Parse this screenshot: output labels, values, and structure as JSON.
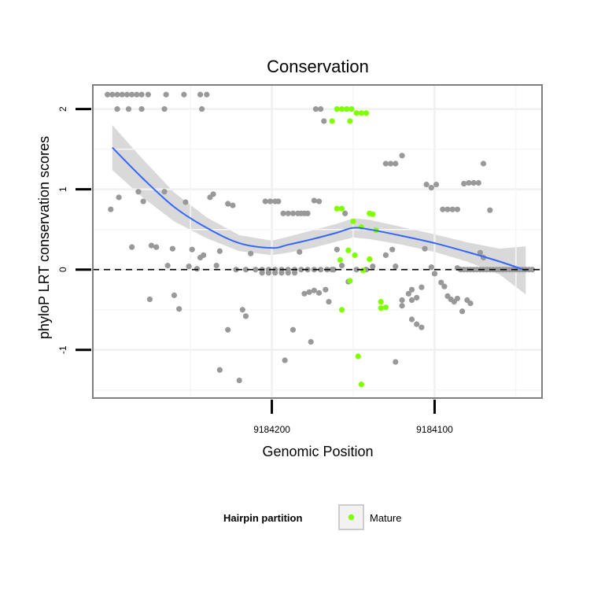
{
  "chart_data": {
    "type": "scatter",
    "title": "Conservation",
    "xlabel": "Genomic Position",
    "ylabel": "phyloP LRT conservation scores",
    "x_reversed": true,
    "xlim": [
      9184310,
      9184034
    ],
    "ylim": [
      -1.6,
      2.3
    ],
    "x_ticks": [
      9184200,
      9184100
    ],
    "x_tick_labels": [
      "9184200",
      "9184100"
    ],
    "y_ticks": [
      -1,
      0,
      1,
      2
    ],
    "y_tick_labels": [
      "-1",
      "0",
      "1",
      "2"
    ],
    "grid": true,
    "reference_line": {
      "y": 0,
      "style": "dashed"
    },
    "legend": {
      "title": "Hairpin partition",
      "placement": "bottom",
      "entries": [
        {
          "label": "Mature",
          "color": "#80ff00"
        }
      ]
    },
    "colors": {
      "other": "#999999",
      "mature": "#80ff00",
      "smooth": "#3366ff",
      "band": "#cccccc"
    },
    "series": [
      {
        "group": "other",
        "points": [
          [
            9184301,
            2.18
          ],
          [
            9184298,
            2.18
          ],
          [
            9184295,
            2.18
          ],
          [
            9184292,
            2.18
          ],
          [
            9184289,
            2.18
          ],
          [
            9184286,
            2.18
          ],
          [
            9184283,
            2.18
          ],
          [
            9184280,
            2.18
          ],
          [
            9184276,
            2.18
          ],
          [
            9184265,
            2.18
          ],
          [
            9184254,
            2.18
          ],
          [
            9184244,
            2.18
          ],
          [
            9184240,
            2.18
          ],
          [
            9184295,
            2.0
          ],
          [
            9184288,
            2.0
          ],
          [
            9184280,
            2.0
          ],
          [
            9184266,
            2.0
          ],
          [
            9184243,
            2.0
          ],
          [
            9184204,
            0.85
          ],
          [
            9184201,
            0.85
          ],
          [
            9184198,
            0.85
          ],
          [
            9184196,
            0.85
          ],
          [
            9184193,
            0.7
          ],
          [
            9184190,
            0.7
          ],
          [
            9184187,
            0.7
          ],
          [
            9184184,
            0.7
          ],
          [
            9184182,
            0.7
          ],
          [
            9184180,
            0.7
          ],
          [
            9184178,
            0.7
          ],
          [
            9184174,
            0.86
          ],
          [
            9184171,
            0.85
          ],
          [
            9184173,
            2.0
          ],
          [
            9184170,
            2.0
          ],
          [
            9184168,
            1.85
          ],
          [
            9184130,
            1.32
          ],
          [
            9184127,
            1.32
          ],
          [
            9184124,
            1.32
          ],
          [
            9184120,
            1.42
          ],
          [
            9184105,
            1.06
          ],
          [
            9184102,
            1.02
          ],
          [
            9184099,
            1.06
          ],
          [
            9184095,
            0.75
          ],
          [
            9184092,
            0.75
          ],
          [
            9184089,
            0.75
          ],
          [
            9184086,
            0.75
          ],
          [
            9184082,
            1.07
          ],
          [
            9184079,
            1.08
          ],
          [
            9184076,
            1.08
          ],
          [
            9184073,
            1.08
          ],
          [
            9184070,
            1.32
          ],
          [
            9184066,
            0.74
          ],
          [
            9184299,
            0.75
          ],
          [
            9184294,
            0.9
          ],
          [
            9184286,
            0.28
          ],
          [
            9184282,
            0.97
          ],
          [
            9184279,
            0.85
          ],
          [
            9184275,
            -0.37
          ],
          [
            9184274,
            0.3
          ],
          [
            9184271,
            0.28
          ],
          [
            9184266,
            0.97
          ],
          [
            9184264,
            0.05
          ],
          [
            9184261,
            0.26
          ],
          [
            9184260,
            -0.32
          ],
          [
            9184257,
            -0.49
          ],
          [
            9184253,
            0.84
          ],
          [
            9184251,
            0.04
          ],
          [
            9184249,
            0.25
          ],
          [
            9184246,
            0.01
          ],
          [
            9184244,
            0.15
          ],
          [
            9184242,
            0.18
          ],
          [
            9184238,
            0.9
          ],
          [
            9184236,
            0.94
          ],
          [
            9184234,
            0.05
          ],
          [
            9184232,
            0.23
          ],
          [
            9184232,
            -1.25
          ],
          [
            9184227,
            -0.75
          ],
          [
            9184227,
            0.82
          ],
          [
            9184224,
            0.8
          ],
          [
            9184220,
            -1.38
          ],
          [
            9184218,
            -0.5
          ],
          [
            9184216,
            -0.58
          ],
          [
            9184213,
            0.2
          ],
          [
            9184222,
            0.0
          ],
          [
            9184216,
            0.0
          ],
          [
            9184210,
            0.0
          ],
          [
            9184206,
            0.0
          ],
          [
            9184202,
            0.0
          ],
          [
            9184198,
            0.0
          ],
          [
            9184194,
            0.0
          ],
          [
            9184190,
            0.0
          ],
          [
            9184186,
            0.0
          ],
          [
            9184182,
            0.0
          ],
          [
            9184178,
            0.0
          ],
          [
            9184174,
            0.0
          ],
          [
            9184170,
            0.0
          ],
          [
            9184166,
            0.0
          ],
          [
            9184162,
            0.0
          ],
          [
            9184206,
            -0.04
          ],
          [
            9184202,
            -0.04
          ],
          [
            9184198,
            -0.04
          ],
          [
            9184194,
            -0.04
          ],
          [
            9184190,
            -0.04
          ],
          [
            9184186,
            -0.04
          ],
          [
            9184192,
            -1.13
          ],
          [
            9184187,
            -0.75
          ],
          [
            9184176,
            -0.9
          ],
          [
            9184183,
            0.22
          ],
          [
            9184180,
            -0.3
          ],
          [
            9184177,
            -0.28
          ],
          [
            9184174,
            -0.26
          ],
          [
            9184171,
            -0.29
          ],
          [
            9184167,
            -0.25
          ],
          [
            9184165,
            -0.4
          ],
          [
            9184163,
            0.0
          ],
          [
            9184160,
            0.25
          ],
          [
            9184157,
            0.05
          ],
          [
            9184155,
            0.7
          ],
          [
            9184153,
            -0.15
          ],
          [
            9184148,
            0.0
          ],
          [
            9184142,
            0.0
          ],
          [
            9184138,
            0.04
          ],
          [
            9184130,
            0.18
          ],
          [
            9184126,
            0.25
          ],
          [
            9184124,
            0.04
          ],
          [
            9184120,
            -0.38
          ],
          [
            9184116,
            -0.3
          ],
          [
            9184114,
            -0.38
          ],
          [
            9184111,
            -0.35
          ],
          [
            9184108,
            -0.22
          ],
          [
            9184124,
            -1.15
          ],
          [
            9184120,
            -0.45
          ],
          [
            9184114,
            -0.62
          ],
          [
            9184111,
            -0.68
          ],
          [
            9184108,
            -0.72
          ],
          [
            9184114,
            -0.25
          ],
          [
            9184106,
            0.26
          ],
          [
            9184102,
            0.03
          ],
          [
            9184100,
            -0.05
          ],
          [
            9184096,
            -0.16
          ],
          [
            9184094,
            -0.21
          ],
          [
            9184092,
            -0.33
          ],
          [
            9184090,
            -0.37
          ],
          [
            9184088,
            -0.4
          ],
          [
            9184086,
            0.02
          ],
          [
            9184084,
            0.0
          ],
          [
            9184082,
            0.0
          ],
          [
            9184080,
            0.0
          ],
          [
            9184078,
            0.0
          ],
          [
            9184076,
            0.0
          ],
          [
            9184074,
            0.0
          ],
          [
            9184072,
            0.0
          ],
          [
            9184070,
            0.0
          ],
          [
            9184068,
            0.0
          ],
          [
            9184066,
            0.0
          ],
          [
            9184064,
            0.0
          ],
          [
            9184062,
            0.0
          ],
          [
            9184060,
            0.0
          ],
          [
            9184058,
            0.0
          ],
          [
            9184056,
            0.0
          ],
          [
            9184054,
            0.0
          ],
          [
            9184052,
            0.0
          ],
          [
            9184050,
            0.0
          ],
          [
            9184048,
            0.0
          ],
          [
            9184046,
            0.0
          ],
          [
            9184044,
            0.0
          ],
          [
            9184042,
            0.0
          ],
          [
            9184040,
            0.0
          ],
          [
            9184072,
            0.21
          ],
          [
            9184070,
            0.15
          ],
          [
            9184086,
            -0.36
          ],
          [
            9184083,
            -0.52
          ],
          [
            9184080,
            -0.38
          ],
          [
            9184078,
            -0.42
          ]
        ]
      },
      {
        "group": "mature",
        "name": "Mature",
        "points": [
          [
            9184160,
            2.0
          ],
          [
            9184157,
            2.0
          ],
          [
            9184154,
            2.0
          ],
          [
            9184151,
            2.0
          ],
          [
            9184148,
            1.95
          ],
          [
            9184145,
            1.95
          ],
          [
            9184142,
            1.95
          ],
          [
            9184163,
            1.85
          ],
          [
            9184152,
            1.85
          ],
          [
            9184160,
            0.76
          ],
          [
            9184157,
            0.76
          ],
          [
            9184140,
            0.7
          ],
          [
            9184138,
            0.69
          ],
          [
            9184150,
            0.6
          ],
          [
            9184145,
            0.53
          ],
          [
            9184136,
            0.49
          ],
          [
            9184153,
            0.24
          ],
          [
            9184149,
            0.18
          ],
          [
            9184158,
            0.12
          ],
          [
            9184140,
            0.13
          ],
          [
            9184152,
            -0.14
          ],
          [
            9184144,
            -0.01
          ],
          [
            9184133,
            -0.4
          ],
          [
            9184130,
            -0.47
          ],
          [
            9184133,
            -0.48
          ],
          [
            9184157,
            -0.5
          ],
          [
            9184147,
            -1.08
          ],
          [
            9184145,
            -1.43
          ]
        ]
      }
    ],
    "smooth_curve": {
      "x": [
        9184298,
        9184280,
        9184260,
        9184240,
        9184220,
        9184200,
        9184190,
        9184175,
        9184160,
        9184150,
        9184140,
        9184120,
        9184100,
        9184080,
        9184060,
        9184044
      ],
      "y": [
        1.52,
        1.15,
        0.78,
        0.52,
        0.33,
        0.27,
        0.31,
        0.38,
        0.46,
        0.52,
        0.5,
        0.42,
        0.33,
        0.22,
        0.1,
        -0.01
      ],
      "ci_halfwidth": [
        0.28,
        0.24,
        0.18,
        0.13,
        0.1,
        0.09,
        0.1,
        0.11,
        0.11,
        0.12,
        0.12,
        0.11,
        0.11,
        0.12,
        0.16,
        0.3
      ]
    }
  }
}
